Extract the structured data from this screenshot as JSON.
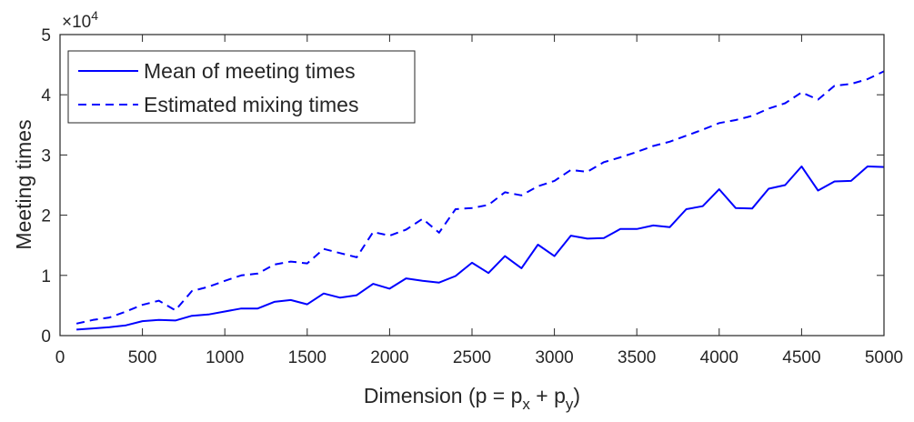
{
  "chart_data": {
    "type": "line",
    "title": "",
    "xlabel": "Dimension (p = p",
    "xlabel_sub1": "x",
    "xlabel_mid": " + p",
    "xlabel_sub2": "y",
    "xlabel_end": ")",
    "ylabel": "Meeting times",
    "y_multiplier": "×10",
    "y_multiplier_exp": "4",
    "xlim": [
      0,
      5000
    ],
    "ylim": [
      0,
      5
    ],
    "x_ticks": [
      0,
      500,
      1000,
      1500,
      2000,
      2500,
      3000,
      3500,
      4000,
      4500,
      5000
    ],
    "y_ticks": [
      0,
      1,
      2,
      3,
      4,
      5
    ],
    "grid": false,
    "legend_position": "top-left",
    "x": [
      100,
      200,
      300,
      400,
      500,
      600,
      700,
      800,
      900,
      1000,
      1100,
      1200,
      1300,
      1400,
      1500,
      1600,
      1700,
      1800,
      1900,
      2000,
      2100,
      2200,
      2300,
      2400,
      2500,
      2600,
      2700,
      2800,
      2900,
      3000,
      3100,
      3200,
      3300,
      3400,
      3500,
      3600,
      3700,
      3800,
      3900,
      4000,
      4100,
      4200,
      4300,
      4400,
      4500,
      4600,
      4700,
      4800,
      4900,
      5000
    ],
    "series": [
      {
        "name": "Mean of meeting times",
        "style": "solid",
        "color": "#0000ff",
        "values": [
          0.1,
          0.12,
          0.14,
          0.17,
          0.24,
          0.26,
          0.25,
          0.33,
          0.35,
          0.4,
          0.45,
          0.45,
          0.56,
          0.59,
          0.52,
          0.7,
          0.63,
          0.67,
          0.86,
          0.78,
          0.95,
          0.91,
          0.88,
          0.99,
          1.21,
          1.04,
          1.32,
          1.12,
          1.51,
          1.32,
          1.66,
          1.61,
          1.62,
          1.77,
          1.77,
          1.83,
          1.8,
          2.1,
          2.15,
          2.43,
          2.12,
          2.11,
          2.44,
          2.5,
          2.81,
          2.41,
          2.56,
          2.57,
          2.81,
          2.8
        ]
      },
      {
        "name": "Estimated mixing times",
        "style": "dashed",
        "color": "#0000ff",
        "values": [
          0.2,
          0.26,
          0.3,
          0.4,
          0.51,
          0.58,
          0.42,
          0.74,
          0.81,
          0.91,
          1.0,
          1.03,
          1.18,
          1.23,
          1.2,
          1.44,
          1.37,
          1.3,
          1.72,
          1.66,
          1.76,
          1.94,
          1.71,
          2.1,
          2.12,
          2.17,
          2.38,
          2.33,
          2.48,
          2.57,
          2.75,
          2.72,
          2.88,
          2.96,
          3.05,
          3.15,
          3.22,
          3.32,
          3.42,
          3.53,
          3.58,
          3.65,
          3.77,
          3.86,
          4.04,
          3.92,
          4.15,
          4.18,
          4.26,
          4.39
        ]
      }
    ]
  }
}
